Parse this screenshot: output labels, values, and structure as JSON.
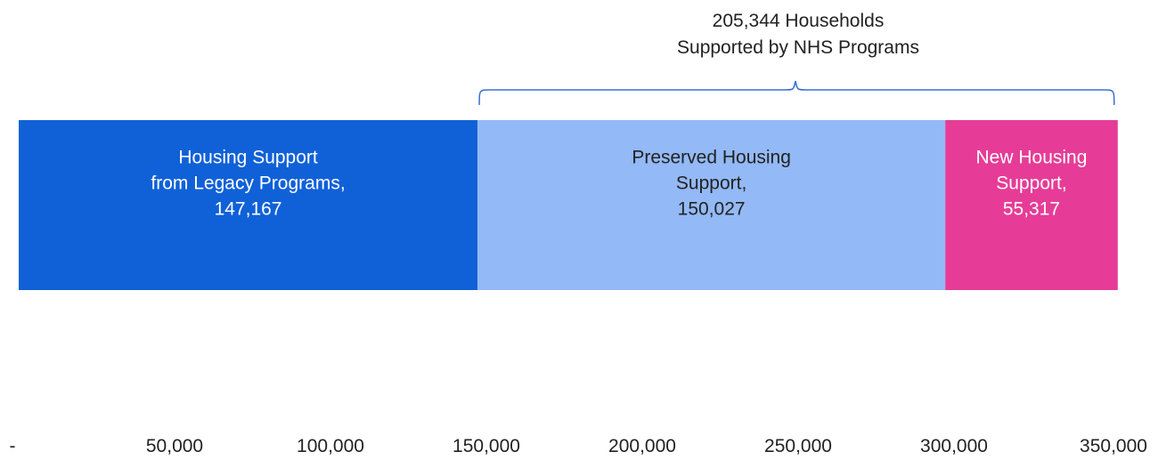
{
  "chart_data": {
    "type": "bar",
    "orientation": "horizontal",
    "stacked": true,
    "xlim": [
      0,
      350000
    ],
    "grid": false,
    "x_ticks": [
      {
        "value": 0,
        "label": "-"
      },
      {
        "value": 50000,
        "label": "50,000"
      },
      {
        "value": 100000,
        "label": "100,000"
      },
      {
        "value": 150000,
        "label": "150,000"
      },
      {
        "value": 200000,
        "label": "200,000"
      },
      {
        "value": 250000,
        "label": "250,000"
      },
      {
        "value": 300000,
        "label": "300,000"
      },
      {
        "value": 350000,
        "label": "350,000"
      }
    ],
    "segments": [
      {
        "label_lines": [
          "Housing Support",
          "from Legacy Programs,",
          "147,167"
        ],
        "value": 147167,
        "color": "#1061d8",
        "text_color": "#ffffff"
      },
      {
        "label_lines": [
          "Preserved Housing",
          "Support,",
          "150,027"
        ],
        "value": 150027,
        "color": "#93b9f6",
        "text_color": "#222222"
      },
      {
        "label_lines": [
          "New Housing",
          "Support,",
          "55,317"
        ],
        "value": 55317,
        "color": "#e63c97",
        "text_color": "#ffffff"
      }
    ],
    "annotation": {
      "lines": [
        "205,344 Households",
        "Supported by NHS Programs"
      ],
      "bracket_color": "#3a6fd8"
    }
  }
}
